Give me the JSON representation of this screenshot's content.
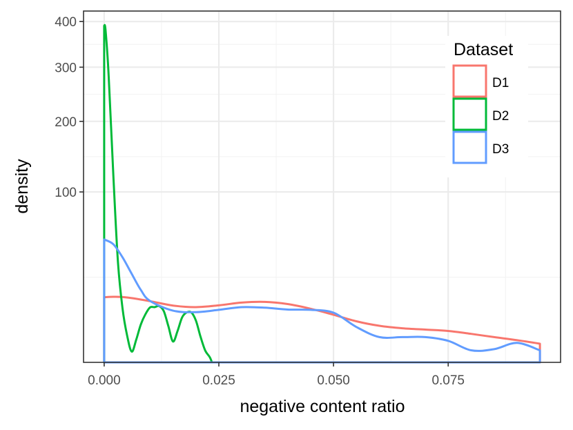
{
  "chart_data": {
    "type": "line",
    "xlabel": "negative content ratio",
    "ylabel": "density",
    "x_ticks": [
      0.0,
      0.025,
      0.05,
      0.075
    ],
    "x_tick_labels": [
      "0.000",
      "0.025",
      "0.050",
      "0.075"
    ],
    "xlim": [
      -0.0045,
      0.0995
    ],
    "y_scale": "sqrt",
    "y_ticks": [
      100,
      200,
      300,
      400
    ],
    "y_tick_labels": [
      "100",
      "200",
      "300",
      "400"
    ],
    "ylim": [
      0,
      425
    ],
    "grid": true,
    "legend": {
      "title": "Dataset",
      "position": "top-right"
    },
    "series": [
      {
        "name": "D1",
        "color": "#F8766D",
        "x": [
          0.0,
          0.002,
          0.005,
          0.01,
          0.015,
          0.02,
          0.025,
          0.03,
          0.035,
          0.04,
          0.045,
          0.05,
          0.055,
          0.06,
          0.065,
          0.07,
          0.075,
          0.08,
          0.085,
          0.09,
          0.095
        ],
        "y": [
          14.6,
          14.8,
          14.5,
          12.9,
          11.1,
          10.5,
          11.2,
          12.3,
          12.6,
          11.7,
          9.9,
          7.8,
          5.8,
          4.6,
          4.0,
          3.7,
          3.4,
          2.8,
          2.2,
          1.7,
          1.2
        ],
        "area_closed": true
      },
      {
        "name": "D2",
        "color": "#00BA38",
        "x": [
          0.0,
          0.0003,
          0.001,
          0.002,
          0.003,
          0.004,
          0.005,
          0.006,
          0.007,
          0.008,
          0.009,
          0.01,
          0.011,
          0.012,
          0.013,
          0.014,
          0.015,
          0.016,
          0.017,
          0.018,
          0.019,
          0.02,
          0.021,
          0.022,
          0.023,
          0.0235
        ],
        "y": [
          390,
          380,
          280,
          120,
          35,
          10,
          2.5,
          0.4,
          1.8,
          5.0,
          8.0,
          10.4,
          10.5,
          10.9,
          9.0,
          4.5,
          1.5,
          3.4,
          7.0,
          8.6,
          8.6,
          6.0,
          2.3,
          0.5,
          0.1,
          0.0
        ],
        "area_closed": true
      },
      {
        "name": "D3",
        "color": "#619CFF",
        "x": [
          0.0,
          0.002,
          0.004,
          0.006,
          0.008,
          0.01,
          0.015,
          0.02,
          0.025,
          0.03,
          0.035,
          0.04,
          0.045,
          0.05,
          0.055,
          0.06,
          0.065,
          0.07,
          0.075,
          0.08,
          0.085,
          0.09,
          0.095
        ],
        "y": [
          52,
          48,
          38,
          27,
          18,
          13.0,
          9.2,
          8.7,
          9.5,
          10.5,
          10.3,
          9.6,
          9.5,
          8.5,
          4.3,
          2.2,
          2.2,
          2.2,
          1.6,
          0.5,
          0.6,
          1.3,
          0.5
        ],
        "area_closed": true
      }
    ]
  }
}
